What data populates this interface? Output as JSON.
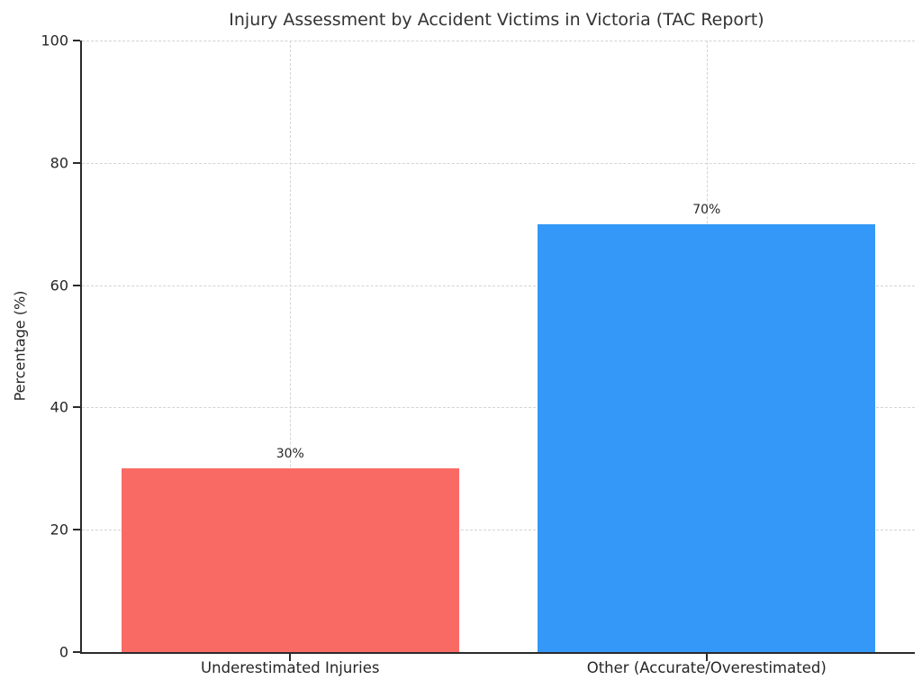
{
  "chart_data": {
    "type": "bar",
    "title": "Injury Assessment by Accident Victims in Victoria (TAC Report)",
    "categories": [
      "Underestimated Injuries",
      "Other (Accurate/Overestimated)"
    ],
    "values": [
      30,
      70
    ],
    "bar_labels": [
      "30%",
      "70%"
    ],
    "colors": [
      "#fa6a65",
      "#3498f8"
    ],
    "xlabel": "",
    "ylabel": "Percentage (%)",
    "ylim": [
      0,
      100
    ],
    "yticks": [
      0,
      20,
      40,
      60,
      80,
      100
    ],
    "ytick_labels": [
      "0",
      "20",
      "40",
      "60",
      "80",
      "100"
    ],
    "grid": "dashed, horizontal at y-ticks and vertical at bar centers",
    "legend": "none"
  }
}
